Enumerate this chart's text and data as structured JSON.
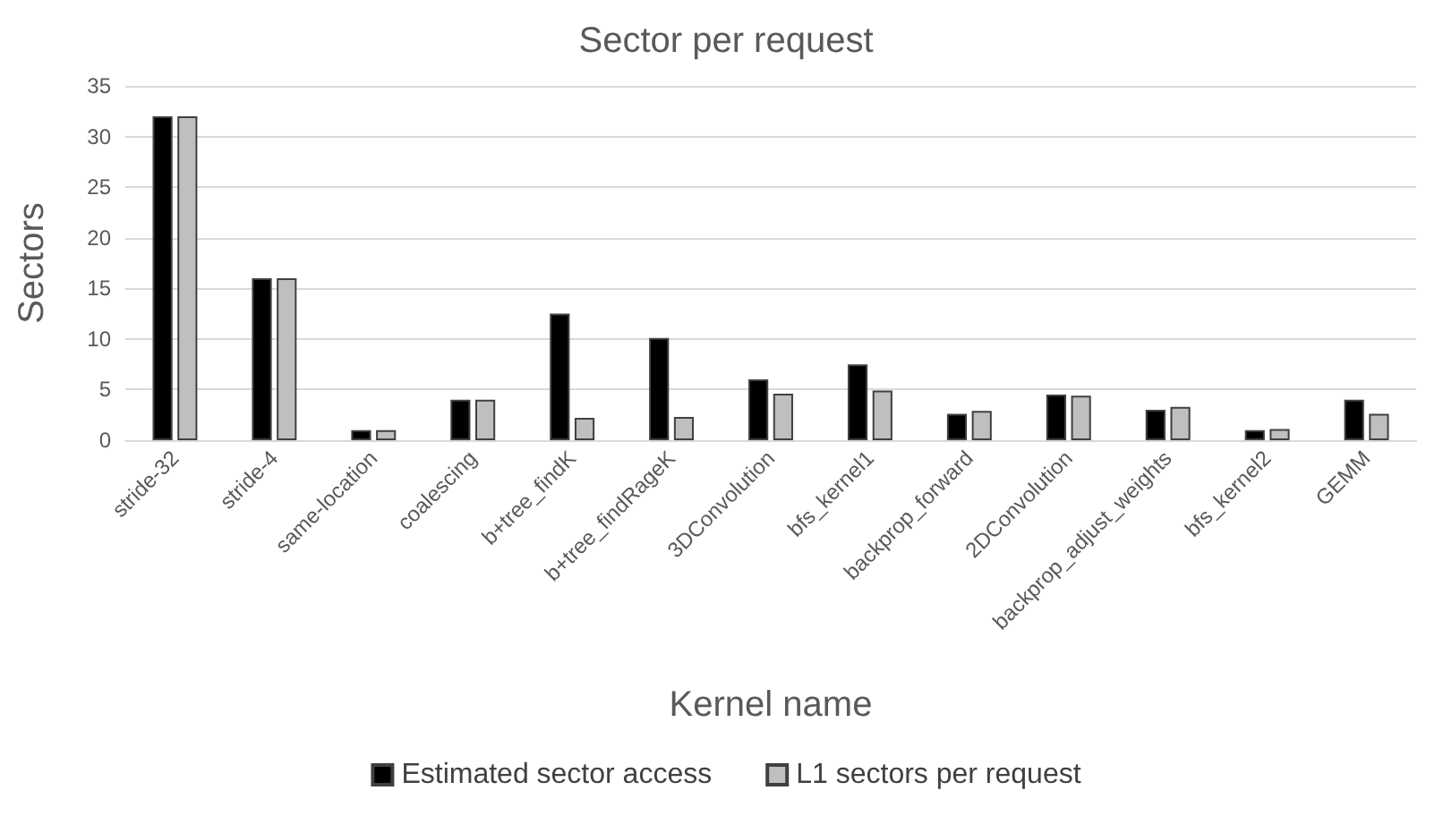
{
  "chart_data": {
    "type": "bar",
    "title": "Sector per request",
    "xlabel": "Kernel name",
    "ylabel": "Sectors",
    "categories": [
      "stride-32",
      "stride-4",
      "same-location",
      "coalescing",
      "b+tree_findK",
      "b+tree_findRageK",
      "3DConvolution",
      "bfs_kernel1",
      "backprop_forward",
      "2DConvolution",
      "backprop_adjust_weights",
      "bfs_kernel2",
      "GEMM"
    ],
    "series": [
      {
        "name": "Estimated sector access",
        "color": "#000000",
        "values": [
          32,
          16,
          1,
          4,
          12.5,
          10.1,
          6,
          7.5,
          2.6,
          4.5,
          3,
          1,
          4
        ]
      },
      {
        "name": "L1 sectors per request",
        "color": "#bfbfbf",
        "values": [
          32,
          16,
          1,
          4,
          2.2,
          2.3,
          4.6,
          4.9,
          2.9,
          4.4,
          3.3,
          1.1,
          2.6
        ]
      }
    ],
    "ylim": [
      0,
      35
    ],
    "yticks": [
      0,
      5,
      10,
      15,
      20,
      25,
      30,
      35
    ],
    "grid": "y",
    "legend": "bottom"
  }
}
